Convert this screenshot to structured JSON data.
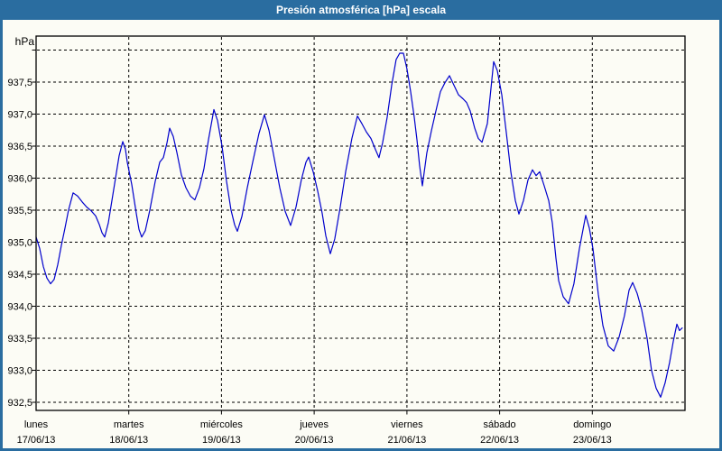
{
  "window": {
    "title": "Presión atmosférica [hPa] escala"
  },
  "colors": {
    "titlebar_bg": "#2A6DA0",
    "border": "#2A6DA0",
    "background": "#FCFCF5",
    "frame": "#000000",
    "grid": "#000000",
    "series": "#0000CC",
    "text": "#000000",
    "title_text": "#FFFFFF"
  },
  "chart_data": {
    "type": "line",
    "title": "Presión atmosférica [hPa] escala",
    "ylabel": "hPa",
    "xlabel": "",
    "legend": "none",
    "grid": "dashed",
    "ylim": [
      932.37,
      938.21
    ],
    "xlim_days": [
      0,
      7
    ],
    "y_ticks": [
      {
        "value": 932.5,
        "label": "932,5"
      },
      {
        "value": 933.0,
        "label": "933,0"
      },
      {
        "value": 933.5,
        "label": "933,5"
      },
      {
        "value": 934.0,
        "label": "934,0"
      },
      {
        "value": 934.5,
        "label": "934,5"
      },
      {
        "value": 935.0,
        "label": "935,0"
      },
      {
        "value": 935.5,
        "label": "935,5"
      },
      {
        "value": 936.0,
        "label": "936,0"
      },
      {
        "value": 936.5,
        "label": "936,5"
      },
      {
        "value": 937.0,
        "label": "937,0"
      },
      {
        "value": 937.5,
        "label": "937,5"
      },
      {
        "value": 938.0,
        "label": ""
      }
    ],
    "x_days": [
      {
        "name": "lunes",
        "date": "17/06/13"
      },
      {
        "name": "martes",
        "date": "18/06/13"
      },
      {
        "name": "miércoles",
        "date": "19/06/13"
      },
      {
        "name": "jueves",
        "date": "20/06/13"
      },
      {
        "name": "viernes",
        "date": "21/06/13"
      },
      {
        "name": "sábado",
        "date": "22/06/13"
      },
      {
        "name": "domingo",
        "date": "23/06/13"
      }
    ],
    "series": [
      {
        "name": "Presión atmosférica",
        "unit": "hPa",
        "points": [
          [
            0.0,
            935.08
          ],
          [
            0.039,
            934.9
          ],
          [
            0.078,
            934.62
          ],
          [
            0.117,
            934.44
          ],
          [
            0.156,
            934.35
          ],
          [
            0.195,
            934.42
          ],
          [
            0.234,
            934.65
          ],
          [
            0.273,
            934.95
          ],
          [
            0.312,
            935.22
          ],
          [
            0.35,
            935.5
          ],
          [
            0.399,
            935.77
          ],
          [
            0.448,
            935.72
          ],
          [
            0.497,
            935.63
          ],
          [
            0.545,
            935.55
          ],
          [
            0.594,
            935.49
          ],
          [
            0.643,
            935.41
          ],
          [
            0.681,
            935.28
          ],
          [
            0.711,
            935.15
          ],
          [
            0.74,
            935.08
          ],
          [
            0.779,
            935.3
          ],
          [
            0.818,
            935.65
          ],
          [
            0.857,
            936.0
          ],
          [
            0.896,
            936.35
          ],
          [
            0.935,
            936.57
          ],
          [
            0.964,
            936.45
          ],
          [
            0.983,
            936.25
          ],
          [
            1.032,
            935.9
          ],
          [
            1.081,
            935.45
          ],
          [
            1.11,
            935.2
          ],
          [
            1.139,
            935.08
          ],
          [
            1.178,
            935.18
          ],
          [
            1.227,
            935.5
          ],
          [
            1.285,
            935.95
          ],
          [
            1.334,
            936.25
          ],
          [
            1.373,
            936.32
          ],
          [
            1.412,
            936.55
          ],
          [
            1.441,
            936.78
          ],
          [
            1.48,
            936.65
          ],
          [
            1.519,
            936.4
          ],
          [
            1.567,
            936.05
          ],
          [
            1.616,
            935.85
          ],
          [
            1.665,
            935.72
          ],
          [
            1.713,
            935.66
          ],
          [
            1.762,
            935.85
          ],
          [
            1.811,
            936.15
          ],
          [
            1.86,
            936.6
          ],
          [
            1.918,
            937.07
          ],
          [
            1.957,
            936.9
          ],
          [
            2.006,
            936.5
          ],
          [
            2.054,
            935.95
          ],
          [
            2.103,
            935.5
          ],
          [
            2.142,
            935.27
          ],
          [
            2.171,
            935.17
          ],
          [
            2.22,
            935.4
          ],
          [
            2.278,
            935.85
          ],
          [
            2.337,
            936.25
          ],
          [
            2.405,
            936.7
          ],
          [
            2.463,
            936.99
          ],
          [
            2.512,
            936.75
          ],
          [
            2.57,
            936.3
          ],
          [
            2.629,
            935.85
          ],
          [
            2.687,
            935.48
          ],
          [
            2.745,
            935.26
          ],
          [
            2.804,
            935.55
          ],
          [
            2.862,
            935.98
          ],
          [
            2.911,
            936.25
          ],
          [
            2.94,
            936.33
          ],
          [
            2.989,
            936.1
          ],
          [
            3.038,
            935.8
          ],
          [
            3.086,
            935.45
          ],
          [
            3.125,
            935.1
          ],
          [
            3.174,
            934.82
          ],
          [
            3.222,
            935.05
          ],
          [
            3.281,
            935.55
          ],
          [
            3.339,
            936.1
          ],
          [
            3.407,
            936.62
          ],
          [
            3.466,
            936.97
          ],
          [
            3.515,
            936.85
          ],
          [
            3.563,
            936.72
          ],
          [
            3.612,
            936.62
          ],
          [
            3.66,
            936.45
          ],
          [
            3.699,
            936.32
          ],
          [
            3.738,
            936.55
          ],
          [
            3.787,
            936.95
          ],
          [
            3.836,
            937.45
          ],
          [
            3.884,
            937.85
          ],
          [
            3.923,
            937.95
          ],
          [
            3.962,
            937.95
          ],
          [
            4.001,
            937.7
          ],
          [
            4.04,
            937.35
          ],
          [
            4.079,
            936.95
          ],
          [
            4.108,
            936.6
          ],
          [
            4.137,
            936.2
          ],
          [
            4.167,
            935.88
          ],
          [
            4.215,
            936.39
          ],
          [
            4.264,
            936.74
          ],
          [
            4.313,
            937.05
          ],
          [
            4.362,
            937.35
          ],
          [
            4.41,
            937.49
          ],
          [
            4.459,
            937.6
          ],
          [
            4.508,
            937.45
          ],
          [
            4.557,
            937.3
          ],
          [
            4.605,
            937.24
          ],
          [
            4.644,
            937.18
          ],
          [
            4.683,
            937.05
          ],
          [
            4.732,
            936.78
          ],
          [
            4.771,
            936.62
          ],
          [
            4.81,
            936.56
          ],
          [
            4.868,
            936.85
          ],
          [
            4.907,
            937.4
          ],
          [
            4.936,
            937.82
          ],
          [
            4.975,
            937.68
          ],
          [
            5.024,
            937.3
          ],
          [
            5.073,
            936.7
          ],
          [
            5.121,
            936.1
          ],
          [
            5.17,
            935.65
          ],
          [
            5.209,
            935.44
          ],
          [
            5.257,
            935.65
          ],
          [
            5.306,
            935.97
          ],
          [
            5.355,
            936.13
          ],
          [
            5.394,
            936.04
          ],
          [
            5.433,
            936.1
          ],
          [
            5.481,
            935.88
          ],
          [
            5.53,
            935.65
          ],
          [
            5.569,
            935.3
          ],
          [
            5.608,
            934.75
          ],
          [
            5.637,
            934.4
          ],
          [
            5.686,
            934.15
          ],
          [
            5.744,
            934.04
          ],
          [
            5.802,
            934.35
          ],
          [
            5.861,
            934.9
          ],
          [
            5.929,
            935.42
          ],
          [
            5.968,
            935.22
          ],
          [
            6.007,
            934.9
          ],
          [
            6.065,
            934.18
          ],
          [
            6.114,
            933.7
          ],
          [
            6.172,
            933.38
          ],
          [
            6.231,
            933.3
          ],
          [
            6.289,
            933.52
          ],
          [
            6.347,
            933.85
          ],
          [
            6.396,
            934.25
          ],
          [
            6.435,
            934.37
          ],
          [
            6.484,
            934.2
          ],
          [
            6.532,
            933.95
          ],
          [
            6.591,
            933.5
          ],
          [
            6.639,
            933.0
          ],
          [
            6.688,
            932.72
          ],
          [
            6.737,
            932.58
          ],
          [
            6.785,
            932.8
          ],
          [
            6.834,
            933.12
          ],
          [
            6.873,
            933.45
          ],
          [
            6.912,
            933.72
          ],
          [
            6.941,
            933.62
          ],
          [
            6.97,
            933.66
          ]
        ]
      }
    ]
  }
}
